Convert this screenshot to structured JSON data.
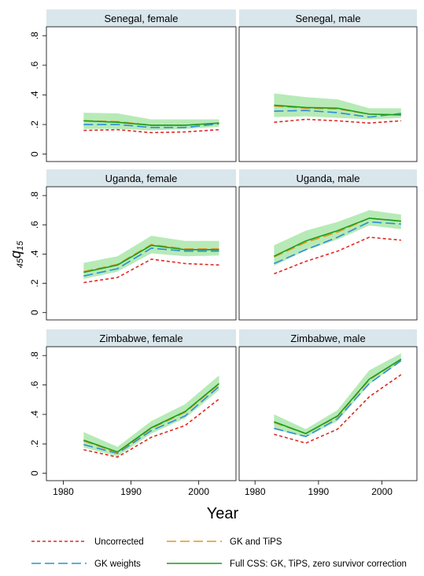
{
  "chart_data": {
    "type": "line",
    "ylabel_sub_pre": "45",
    "ylabel_main": "q",
    "ylabel_sub_post": "15",
    "xlabel": "Year",
    "x_ticks": [
      1980,
      1990,
      2000
    ],
    "x_tick_labels": [
      "1980",
      "1990",
      "2000"
    ],
    "y_ticks": [
      0,
      0.2,
      0.4,
      0.6,
      0.8
    ],
    "y_tick_labels": [
      "0",
      ".2",
      ".4",
      ".6",
      ".8"
    ],
    "xlim": [
      1977.5,
      2005.5
    ],
    "ylim": [
      -0.05,
      0.86
    ],
    "x": [
      1983,
      1988,
      1993,
      1998,
      2003
    ],
    "series_styles": [
      {
        "name": "Uncorrected",
        "color": "#dd2a22",
        "dash": "short"
      },
      {
        "name": "GK weights",
        "color": "#2b8fd6",
        "dash": "long-dash"
      },
      {
        "name": "GK and TiPS",
        "color": "#e89324",
        "dash": "long-dash"
      },
      {
        "name": "Full CSS: GK, TiPS, zero survivor correction",
        "color": "#1a9e1a",
        "dash": "solid"
      }
    ],
    "band_color": "#9fe39f",
    "legend": {
      "position": "bottom",
      "items": [
        {
          "label": "Uncorrected",
          "series": 0
        },
        {
          "label": "GK and TiPS",
          "series": 2
        },
        {
          "label": "GK weights",
          "series": 1
        },
        {
          "label": "Full CSS: GK, TiPS, zero survivor correction",
          "series": 3
        }
      ]
    },
    "panels": [
      {
        "title": "Senegal, female",
        "band_lower": [
          0.17,
          0.17,
          0.16,
          0.17,
          0.185
        ],
        "band_upper": [
          0.28,
          0.275,
          0.235,
          0.235,
          0.235
        ],
        "series": [
          [
            0.16,
            0.165,
            0.145,
            0.15,
            0.165
          ],
          [
            0.2,
            0.2,
            0.18,
            0.18,
            0.205
          ],
          [
            0.225,
            0.22,
            0.195,
            0.195,
            0.21
          ],
          [
            0.225,
            0.215,
            0.195,
            0.195,
            0.21
          ]
        ]
      },
      {
        "title": "Senegal, male",
        "band_lower": [
          0.25,
          0.255,
          0.245,
          0.235,
          0.245
        ],
        "band_upper": [
          0.41,
          0.385,
          0.37,
          0.31,
          0.31
        ],
        "series": [
          [
            0.215,
            0.235,
            0.225,
            0.21,
            0.225
          ],
          [
            0.29,
            0.295,
            0.28,
            0.25,
            0.275
          ],
          [
            0.325,
            0.31,
            0.305,
            0.27,
            0.265
          ],
          [
            0.33,
            0.315,
            0.31,
            0.27,
            0.265
          ]
        ]
      },
      {
        "title": "Uganda, female",
        "band_lower": [
          0.23,
          0.28,
          0.405,
          0.385,
          0.39
        ],
        "band_upper": [
          0.34,
          0.385,
          0.525,
          0.49,
          0.49
        ],
        "series": [
          [
            0.205,
            0.24,
            0.365,
            0.335,
            0.325
          ],
          [
            0.25,
            0.3,
            0.44,
            0.42,
            0.42
          ],
          [
            0.28,
            0.33,
            0.465,
            0.435,
            0.435
          ],
          [
            0.275,
            0.325,
            0.46,
            0.43,
            0.43
          ]
        ]
      },
      {
        "title": "Uganda, male",
        "band_lower": [
          0.32,
          0.425,
          0.5,
          0.595,
          0.57
        ],
        "band_upper": [
          0.46,
          0.56,
          0.62,
          0.7,
          0.67
        ],
        "series": [
          [
            0.265,
            0.35,
            0.42,
            0.515,
            0.495
          ],
          [
            0.335,
            0.43,
            0.515,
            0.62,
            0.605
          ],
          [
            0.38,
            0.48,
            0.55,
            0.645,
            0.625
          ],
          [
            0.385,
            0.49,
            0.56,
            0.645,
            0.625
          ]
        ]
      },
      {
        "title": "Zimbabwe, female",
        "band_lower": [
          0.175,
          0.115,
          0.27,
          0.375,
          0.565
        ],
        "band_upper": [
          0.28,
          0.18,
          0.355,
          0.47,
          0.665
        ],
        "series": [
          [
            0.16,
            0.11,
            0.245,
            0.325,
            0.505
          ],
          [
            0.195,
            0.135,
            0.29,
            0.39,
            0.59
          ],
          [
            0.22,
            0.14,
            0.305,
            0.415,
            0.605
          ],
          [
            0.225,
            0.145,
            0.31,
            0.42,
            0.61
          ]
        ]
      },
      {
        "title": "Zimbabwe, male",
        "band_lower": [
          0.3,
          0.245,
          0.355,
          0.605,
          0.76
        ],
        "band_upper": [
          0.4,
          0.3,
          0.43,
          0.7,
          0.815
        ],
        "series": [
          [
            0.265,
            0.205,
            0.3,
            0.52,
            0.67
          ],
          [
            0.305,
            0.25,
            0.37,
            0.61,
            0.765
          ],
          [
            0.345,
            0.27,
            0.385,
            0.635,
            0.775
          ],
          [
            0.35,
            0.27,
            0.39,
            0.64,
            0.775
          ]
        ]
      }
    ]
  }
}
